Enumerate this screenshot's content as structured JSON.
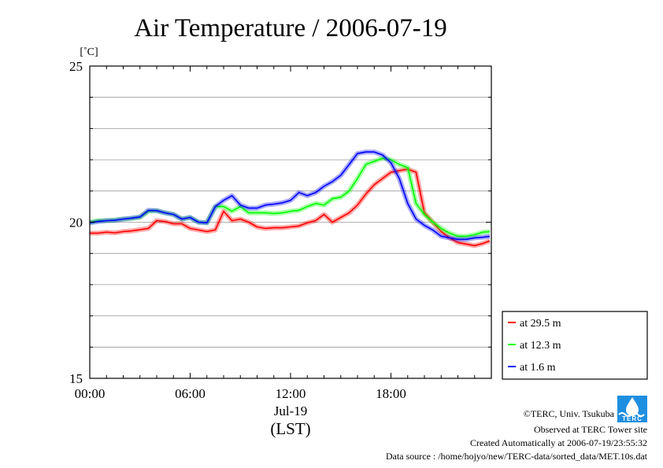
{
  "chart_data": {
    "type": "line",
    "title": "Air Temperature / 2006-07-19",
    "ylabel": "[˚C]",
    "xlabel": "(LST)",
    "date_label": "Jul-19",
    "x_unit": "hour of day (LST)",
    "xlim": [
      0,
      24
    ],
    "ylim": [
      15,
      25
    ],
    "x_ticks": [
      0,
      6,
      12,
      18
    ],
    "x_tick_labels": [
      "00:00",
      "06:00",
      "12:00",
      "18:00"
    ],
    "y_ticks": [
      15,
      20,
      25
    ],
    "y_tick_labels": [
      "15",
      "20",
      "25"
    ],
    "grid": true,
    "legend_position": "right, below plot",
    "x": [
      0,
      0.5,
      1,
      1.5,
      2,
      2.5,
      3,
      3.5,
      4,
      4.5,
      5,
      5.5,
      6,
      6.5,
      7,
      7.5,
      8,
      8.5,
      9,
      9.5,
      10,
      10.5,
      11,
      11.5,
      12,
      12.5,
      13,
      13.5,
      14,
      14.5,
      15,
      15.5,
      16,
      16.5,
      17,
      17.5,
      18,
      18.5,
      19,
      19.5,
      20,
      20.5,
      21,
      21.5,
      22,
      22.5,
      23,
      23.5,
      23.9
    ],
    "series": [
      {
        "name": "at 29.5 m",
        "color": "#ff0000",
        "values": [
          19.65,
          19.65,
          19.68,
          19.66,
          19.7,
          19.72,
          19.76,
          19.8,
          20.05,
          20.02,
          19.95,
          19.95,
          19.8,
          19.75,
          19.7,
          19.75,
          20.35,
          20.05,
          20.1,
          20.0,
          19.85,
          19.8,
          19.82,
          19.82,
          19.85,
          19.88,
          19.98,
          20.05,
          20.25,
          20.0,
          20.15,
          20.3,
          20.55,
          20.9,
          21.2,
          21.4,
          21.6,
          21.65,
          21.7,
          21.6,
          20.3,
          20.0,
          19.7,
          19.5,
          19.35,
          19.3,
          19.25,
          19.32,
          19.4
        ]
      },
      {
        "name": "at 12.3 m",
        "color": "#00ff00",
        "values": [
          20.0,
          20.05,
          20.05,
          20.07,
          20.1,
          20.12,
          20.16,
          20.35,
          20.37,
          20.3,
          20.25,
          20.1,
          20.15,
          20.0,
          19.98,
          20.5,
          20.5,
          20.35,
          20.5,
          20.3,
          20.3,
          20.3,
          20.28,
          20.3,
          20.35,
          20.38,
          20.5,
          20.6,
          20.55,
          20.75,
          20.8,
          21.0,
          21.4,
          21.85,
          21.95,
          22.05,
          22.0,
          21.85,
          21.75,
          20.6,
          20.25,
          20.0,
          19.8,
          19.65,
          19.55,
          19.55,
          19.6,
          19.68,
          19.7
        ]
      },
      {
        "name": "at 1.6 m",
        "color": "#0000ff",
        "values": [
          19.98,
          20.02,
          20.05,
          20.06,
          20.1,
          20.13,
          20.17,
          20.38,
          20.37,
          20.3,
          20.25,
          20.1,
          20.15,
          20.0,
          19.98,
          20.5,
          20.7,
          20.85,
          20.55,
          20.45,
          20.45,
          20.55,
          20.58,
          20.62,
          20.7,
          20.95,
          20.85,
          20.95,
          21.15,
          21.3,
          21.5,
          21.85,
          22.2,
          22.25,
          22.25,
          22.15,
          21.9,
          21.4,
          20.6,
          20.1,
          19.9,
          19.75,
          19.55,
          19.5,
          19.45,
          19.45,
          19.5,
          19.52,
          19.55
        ]
      }
    ]
  },
  "footer": {
    "copyright": "©TERC, Univ. Tsukuba",
    "observed": "Observed at TERC Tower site",
    "created": "Created Automatically at 2006-07-19/23:55:32",
    "source": "Data source : /home/hojyo/new/TERC-data/sorted_data/MET.10s.dat"
  },
  "logo": {
    "text": "TERC",
    "color": "#1e8fe0"
  }
}
